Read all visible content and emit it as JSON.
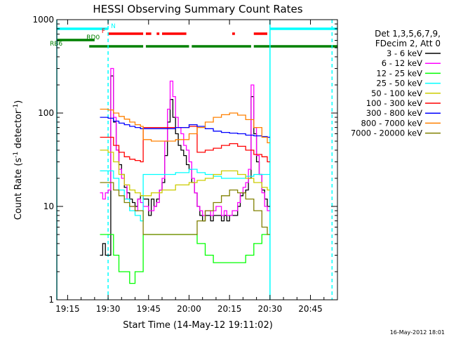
{
  "chart_data": {
    "type": "line",
    "title": "HESSI Observing Summary Count Rates",
    "xlabel": "Start Time (14-May-12 19:11:02)",
    "ylabel_main": "Count Rate (s",
    "ylabel_sup1": "-1",
    "ylabel_mid": " detector",
    "ylabel_sup2": "-1",
    "ylabel_end": ")",
    "footer": "16-May-2012 18:01",
    "xrange_min": [
      1151,
      1255
    ],
    "yrange": [
      1,
      1000
    ],
    "yscale": "log",
    "x_ticks": [
      {
        "label": "19:15",
        "min": 1155
      },
      {
        "label": "19:30",
        "min": 1170
      },
      {
        "label": "19:45",
        "min": 1185
      },
      {
        "label": "20:00",
        "min": 1200
      },
      {
        "label": "20:15",
        "min": 1215
      },
      {
        "label": "20:30",
        "min": 1230
      },
      {
        "label": "20:45",
        "min": 1245
      }
    ],
    "y_ticks": [
      {
        "label": "1",
        "value": 1
      },
      {
        "label": "10",
        "value": 10
      },
      {
        "label": "100",
        "value": 100
      },
      {
        "label": "1000",
        "value": 1000
      }
    ],
    "legend": {
      "header1": "Det 1,3,5,6,7,9,",
      "header2": "FDecim 2, Att 0",
      "entries": [
        {
          "label": "3 - 6 keV",
          "color": "#000000"
        },
        {
          "label": "6 - 12 keV",
          "color": "#ff00ff"
        },
        {
          "label": "12 - 25 keV",
          "color": "#00ff00"
        },
        {
          "label": "25 - 50 keV",
          "color": "#00ffff"
        },
        {
          "label": "50 - 100 keV",
          "color": "#cccc00"
        },
        {
          "label": "100 - 300 keV",
          "color": "#ff0000"
        },
        {
          "label": "300 - 800 keV",
          "color": "#0000ff"
        },
        {
          "label": "800 - 7000 keV",
          "color": "#ff8000"
        },
        {
          "label": "7000 - 20000 keV",
          "color": "#808000"
        }
      ]
    },
    "flag_bars": [
      {
        "label": "N",
        "color": "#00ffff",
        "segments": [
          [
            1151,
            1170
          ],
          [
            1230,
            1255
          ]
        ]
      },
      {
        "label": "F",
        "color": "#ff0000",
        "segments": [
          [
            1170,
            1183
          ],
          [
            1184,
            1186
          ],
          [
            1188,
            1189
          ],
          [
            1190,
            1199
          ],
          [
            1216,
            1217
          ],
          [
            1224,
            1229
          ]
        ]
      },
      {
        "label": "RD0",
        "color": "#008000",
        "segments": [
          [
            1151,
            1165
          ]
        ]
      },
      {
        "label": "RB6",
        "color": "#008000",
        "segments": [
          [
            1163,
            1183
          ],
          [
            1184,
            1200
          ],
          [
            1201,
            1223
          ],
          [
            1224,
            1255
          ]
        ]
      }
    ],
    "vlines": [
      {
        "min": 1151,
        "style": "solid"
      },
      {
        "min": 1170,
        "style": "dashed"
      },
      {
        "min": 1230,
        "style": "solid"
      },
      {
        "min": 1253,
        "style": "dashed"
      }
    ],
    "series": [
      {
        "name": "3 - 6 keV",
        "color": "#000000",
        "x": [
          1167,
          1168,
          1169,
          1170,
          1171,
          1172,
          1173,
          1174,
          1175,
          1176,
          1177,
          1178,
          1179,
          1180,
          1181,
          1182,
          1183,
          1184,
          1185,
          1186,
          1187,
          1188,
          1189,
          1190,
          1191,
          1192,
          1193,
          1194,
          1195,
          1196,
          1197,
          1198,
          1199,
          1200,
          1201,
          1202,
          1203,
          1204,
          1205,
          1206,
          1207,
          1208,
          1209,
          1210,
          1211,
          1212,
          1213,
          1214,
          1215,
          1216,
          1217,
          1218,
          1219,
          1220,
          1221,
          1222,
          1223,
          1224,
          1225,
          1226,
          1227,
          1228,
          1229
        ],
        "y": [
          3,
          4,
          3,
          3,
          250,
          80,
          40,
          28,
          22,
          16,
          14,
          12,
          11,
          10,
          12,
          13,
          12,
          12,
          8,
          12,
          10,
          12,
          15,
          18,
          35,
          80,
          140,
          90,
          60,
          45,
          40,
          35,
          28,
          25,
          18,
          14,
          10,
          8,
          7,
          8,
          8,
          7,
          8,
          8,
          8,
          7,
          8,
          7,
          8,
          8,
          8,
          10,
          13,
          14,
          15,
          20,
          150,
          60,
          30,
          22,
          15,
          12,
          10
        ]
      },
      {
        "name": "6 - 12 keV",
        "color": "#ff00ff",
        "x": [
          1167,
          1168,
          1169,
          1170,
          1171,
          1172,
          1173,
          1174,
          1175,
          1176,
          1177,
          1178,
          1179,
          1180,
          1181,
          1182,
          1183,
          1184,
          1185,
          1186,
          1187,
          1188,
          1189,
          1190,
          1191,
          1192,
          1193,
          1194,
          1195,
          1196,
          1197,
          1198,
          1199,
          1200,
          1201,
          1202,
          1203,
          1204,
          1205,
          1206,
          1207,
          1208,
          1209,
          1210,
          1211,
          1212,
          1213,
          1214,
          1215,
          1216,
          1217,
          1218,
          1219,
          1220,
          1221,
          1222,
          1223,
          1224,
          1225,
          1226,
          1227,
          1228,
          1229
        ],
        "y": [
          14,
          12,
          14,
          15,
          300,
          90,
          40,
          25,
          20,
          17,
          12,
          10,
          10,
          9,
          12,
          11,
          10,
          10,
          9,
          9,
          10,
          11,
          15,
          20,
          50,
          110,
          220,
          150,
          90,
          70,
          60,
          45,
          40,
          30,
          20,
          14,
          10,
          9,
          8,
          9,
          9,
          8,
          9,
          10,
          10,
          8,
          9,
          8,
          8,
          9,
          9,
          11,
          14,
          16,
          18,
          25,
          200,
          70,
          35,
          22,
          14,
          10,
          9
        ]
      },
      {
        "name": "12 - 25 keV",
        "color": "#00ff00",
        "x": [
          1167,
          1170,
          1172,
          1174,
          1176,
          1178,
          1180,
          1182,
          1183,
          1186,
          1190,
          1195,
          1200,
          1203,
          1206,
          1209,
          1212,
          1215,
          1218,
          1221,
          1224,
          1227,
          1229
        ],
        "y": [
          5,
          5,
          3,
          2,
          2,
          1.5,
          2,
          2,
          5,
          5,
          5,
          5,
          5,
          4,
          3,
          2.5,
          2.5,
          2.5,
          2.5,
          3,
          4,
          5,
          5
        ]
      },
      {
        "name": "25 - 50 keV",
        "color": "#00ffff",
        "x": [
          1167,
          1170,
          1172,
          1174,
          1176,
          1178,
          1180,
          1182,
          1183,
          1186,
          1190,
          1195,
          1200,
          1203,
          1206,
          1209,
          1212,
          1215,
          1218,
          1221,
          1224,
          1227,
          1229
        ],
        "y": [
          24,
          24,
          20,
          15,
          12,
          9,
          8,
          7,
          22,
          22,
          22,
          23,
          25,
          23,
          22,
          21,
          20,
          20,
          20,
          21,
          22,
          22,
          22
        ]
      },
      {
        "name": "50 - 100 keV",
        "color": "#cccc00",
        "x": [
          1167,
          1170,
          1172,
          1174,
          1176,
          1178,
          1180,
          1182,
          1183,
          1186,
          1190,
          1195,
          1200,
          1203,
          1206,
          1209,
          1212,
          1215,
          1218,
          1221,
          1224,
          1227,
          1229
        ],
        "y": [
          40,
          38,
          30,
          22,
          17,
          15,
          14,
          13,
          13,
          14,
          15,
          17,
          18,
          19,
          20,
          22,
          24,
          24,
          22,
          20,
          18,
          16,
          15
        ]
      },
      {
        "name": "100 - 300 keV",
        "color": "#ff0000",
        "x": [
          1167,
          1170,
          1172,
          1174,
          1176,
          1178,
          1180,
          1182,
          1183,
          1186,
          1190,
          1195,
          1200,
          1203,
          1206,
          1209,
          1212,
          1215,
          1218,
          1221,
          1224,
          1227,
          1229
        ],
        "y": [
          55,
          55,
          45,
          38,
          34,
          32,
          31,
          30,
          70,
          70,
          70,
          70,
          72,
          38,
          40,
          42,
          45,
          47,
          44,
          40,
          36,
          34,
          30
        ]
      },
      {
        "name": "300 - 800 keV",
        "color": "#0000ff",
        "x": [
          1167,
          1170,
          1172,
          1174,
          1176,
          1178,
          1180,
          1182,
          1183,
          1186,
          1190,
          1195,
          1200,
          1203,
          1206,
          1209,
          1212,
          1215,
          1218,
          1221,
          1224,
          1227,
          1229
        ],
        "y": [
          90,
          88,
          82,
          78,
          75,
          72,
          70,
          68,
          68,
          68,
          68,
          70,
          75,
          72,
          68,
          64,
          62,
          61,
          60,
          58,
          57,
          56,
          55
        ]
      },
      {
        "name": "800 - 7000 keV",
        "color": "#ff8000",
        "x": [
          1167,
          1170,
          1172,
          1174,
          1176,
          1178,
          1180,
          1182,
          1183,
          1186,
          1190,
          1195,
          1200,
          1203,
          1206,
          1209,
          1212,
          1215,
          1218,
          1221,
          1224,
          1227,
          1229
        ],
        "y": [
          110,
          108,
          100,
          92,
          86,
          80,
          75,
          72,
          52,
          50,
          50,
          52,
          60,
          70,
          80,
          90,
          96,
          100,
          95,
          85,
          70,
          55,
          48
        ]
      },
      {
        "name": "7000 - 20000 keV",
        "color": "#808000",
        "x": [
          1167,
          1170,
          1172,
          1174,
          1176,
          1178,
          1180,
          1182,
          1183,
          1186,
          1190,
          1195,
          1200,
          1203,
          1206,
          1209,
          1212,
          1215,
          1218,
          1221,
          1224,
          1227,
          1229
        ],
        "y": [
          18,
          18,
          15,
          13,
          11,
          10,
          9,
          9,
          5,
          5,
          5,
          5,
          5,
          7,
          9,
          11,
          13,
          15,
          14,
          12,
          9,
          6,
          5
        ]
      }
    ]
  }
}
